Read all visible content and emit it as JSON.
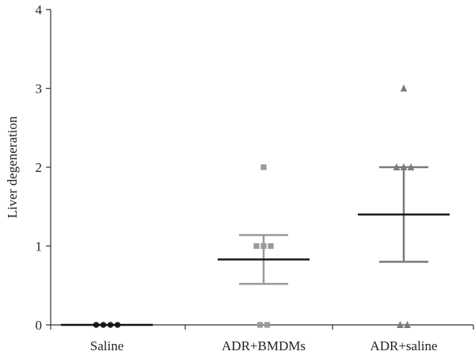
{
  "chart_data": {
    "type": "scatter",
    "title": "",
    "xlabel": "",
    "ylabel": "Liver degeneration",
    "ylim": [
      0,
      4
    ],
    "yticks": [
      "0",
      "1",
      "2",
      "3",
      "4"
    ],
    "categories": [
      "Saline",
      "ADR+BMDMs",
      "ADR+saline"
    ],
    "grid": false,
    "legend": "none",
    "series": [
      {
        "category": "Saline",
        "marker": "circle",
        "color": "#222222",
        "points": [
          0,
          0,
          0,
          0
        ],
        "mean": 0,
        "error_low": 0,
        "error_high": 0
      },
      {
        "category": "ADR+BMDMs",
        "marker": "square",
        "color": "#9a9a9a",
        "points": [
          2,
          1,
          1,
          1,
          0,
          0
        ],
        "mean": 0.83,
        "error_low": 0.52,
        "error_high": 1.14
      },
      {
        "category": "ADR+saline",
        "marker": "triangle",
        "color": "#7a7a7a",
        "points": [
          3,
          2,
          2,
          2,
          0,
          0
        ],
        "mean": 1.4,
        "error_low": 0.8,
        "error_high": 2.0
      }
    ]
  }
}
